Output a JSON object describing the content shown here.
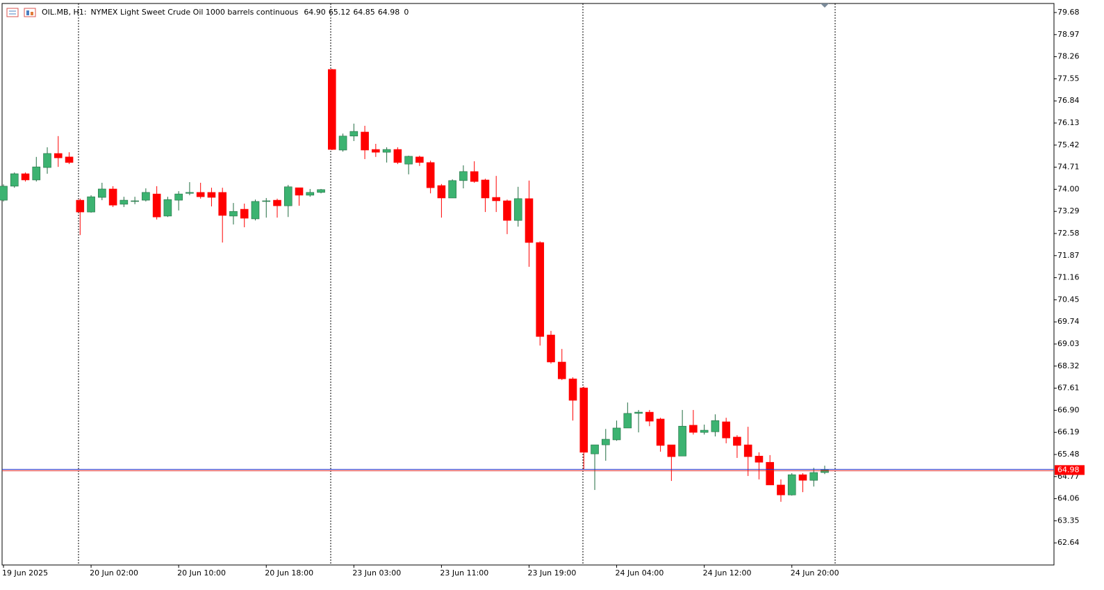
{
  "chart_data": {
    "type": "candlestick",
    "title": "OIL.MB, H1:",
    "subtitle": "NYMEX Light Sweet Crude Oil 1000 barrels continuous",
    "ohlc_labels": [
      "64.90",
      "65.12",
      "64.85",
      "64.98"
    ],
    "spread": 0,
    "categories": [
      "19 Jun 2025",
      null,
      null,
      null,
      null,
      null,
      null,
      null,
      "20 Jun 02:00",
      null,
      null,
      null,
      null,
      null,
      null,
      null,
      "20 Jun 10:00",
      null,
      null,
      null,
      null,
      null,
      null,
      null,
      "20 Jun 18:00",
      null,
      null,
      null,
      null,
      null,
      null,
      null,
      "23 Jun 03:00",
      null,
      null,
      null,
      null,
      null,
      null,
      null,
      "23 Jun 11:00",
      null,
      null,
      null,
      null,
      null,
      null,
      null,
      "23 Jun 19:00",
      null,
      null,
      null,
      null,
      null,
      null,
      null,
      "24 Jun 04:00",
      null,
      null,
      null,
      null,
      null,
      null,
      null,
      "24 Jun 12:00",
      null,
      null,
      null,
      null,
      null,
      null,
      null,
      "24 Jun 20:00",
      null,
      null,
      null
    ],
    "open": [
      73.65,
      74.1,
      74.5,
      74.3,
      74.7,
      75.15,
      75.04,
      73.65,
      73.27,
      73.74,
      74.01,
      73.52,
      73.62,
      73.65,
      73.85,
      73.14,
      73.65,
      73.87,
      73.9,
      73.9,
      73.9,
      73.14,
      73.36,
      73.05,
      73.61,
      73.65,
      73.47,
      74.05,
      73.81,
      73.9,
      77.85,
      75.26,
      75.71,
      75.84,
      75.28,
      75.19,
      75.28,
      74.81,
      75.04,
      74.86,
      74.12,
      73.72,
      74.28,
      74.57,
      74.3,
      73.74,
      73.63,
      73.0,
      73.7,
      72.29,
      69.32,
      68.45,
      67.91,
      67.62,
      65.5,
      65.79,
      65.95,
      66.33,
      66.8,
      66.84,
      66.62,
      65.79,
      65.43,
      66.42,
      66.19,
      66.21,
      66.53,
      66.04,
      65.79,
      65.43,
      65.23,
      64.5,
      64.18,
      64.83,
      64.65,
      64.9
    ],
    "high": [
      74.16,
      74.54,
      74.54,
      75.04,
      75.35,
      75.71,
      75.19,
      73.7,
      73.81,
      74.21,
      74.1,
      73.76,
      73.76,
      74.03,
      74.1,
      73.76,
      73.94,
      74.23,
      74.21,
      74.05,
      74.05,
      73.56,
      73.54,
      73.67,
      73.72,
      73.7,
      74.14,
      74.05,
      74.01,
      74.01,
      77.87,
      75.79,
      76.11,
      76.04,
      75.46,
      75.35,
      75.35,
      75.08,
      75.08,
      74.92,
      74.17,
      74.32,
      74.77,
      74.9,
      74.34,
      74.43,
      73.67,
      74.08,
      74.28,
      72.33,
      69.45,
      68.87,
      67.96,
      67.66,
      65.79,
      66.3,
      66.57,
      67.15,
      66.91,
      66.91,
      66.66,
      65.79,
      66.91,
      66.91,
      66.44,
      66.77,
      66.66,
      66.1,
      66.37,
      65.55,
      65.46,
      64.68,
      64.88,
      64.88,
      65.05,
      65.12
    ],
    "low": [
      73.61,
      74.05,
      74.25,
      74.25,
      74.5,
      74.72,
      74.81,
      72.53,
      73.25,
      73.65,
      73.43,
      73.43,
      73.52,
      73.61,
      73.03,
      73.11,
      73.32,
      73.81,
      73.7,
      73.45,
      72.29,
      72.87,
      72.78,
      73.0,
      73.09,
      73.09,
      73.11,
      73.47,
      73.76,
      73.87,
      75.26,
      75.21,
      75.55,
      74.97,
      75.04,
      74.86,
      74.81,
      74.48,
      74.75,
      73.87,
      73.09,
      73.72,
      74.03,
      74.21,
      73.27,
      73.27,
      72.56,
      72.8,
      71.51,
      68.98,
      68.4,
      67.87,
      66.57,
      65.01,
      64.34,
      65.28,
      65.92,
      66.33,
      66.19,
      66.39,
      65.57,
      64.63,
      65.43,
      66.12,
      66.12,
      66.06,
      65.84,
      65.37,
      64.79,
      64.68,
      64.5,
      63.96,
      64.16,
      64.27,
      64.45,
      64.85
    ],
    "close": [
      74.1,
      74.5,
      74.3,
      74.72,
      75.15,
      75.01,
      74.86,
      73.27,
      73.76,
      74.01,
      73.49,
      73.65,
      73.63,
      73.9,
      73.11,
      73.67,
      73.85,
      73.9,
      73.76,
      73.74,
      73.16,
      73.29,
      73.07,
      73.61,
      73.63,
      73.47,
      74.08,
      73.81,
      73.9,
      73.99,
      75.28,
      75.71,
      75.86,
      75.26,
      75.19,
      75.28,
      74.86,
      75.06,
      74.86,
      74.05,
      73.72,
      74.28,
      74.57,
      74.25,
      73.72,
      73.63,
      73.0,
      73.7,
      72.29,
      69.27,
      68.45,
      67.91,
      67.22,
      65.55,
      65.79,
      65.97,
      66.33,
      66.8,
      66.84,
      66.55,
      65.77,
      65.41,
      66.39,
      66.19,
      66.26,
      66.57,
      66.01,
      65.77,
      65.41,
      65.23,
      64.5,
      64.18,
      64.83,
      64.65,
      64.9,
      64.98
    ],
    "up_color": "#3cb371",
    "down_color": "#ff0000",
    "ylim": [
      61.93,
      79.97
    ],
    "yticks": [
      79.68,
      78.97,
      78.26,
      77.55,
      76.84,
      76.13,
      75.42,
      74.71,
      {
        "value": 74,
        "label": "74.00"
      },
      73.29,
      72.58,
      71.87,
      71.16,
      70.45,
      69.74,
      69.03,
      68.32,
      67.61,
      {
        "value": 66.9,
        "label": "66.90"
      },
      66.19,
      65.48,
      64.77,
      64.06,
      63.35,
      62.64
    ],
    "grid": false
  }
}
